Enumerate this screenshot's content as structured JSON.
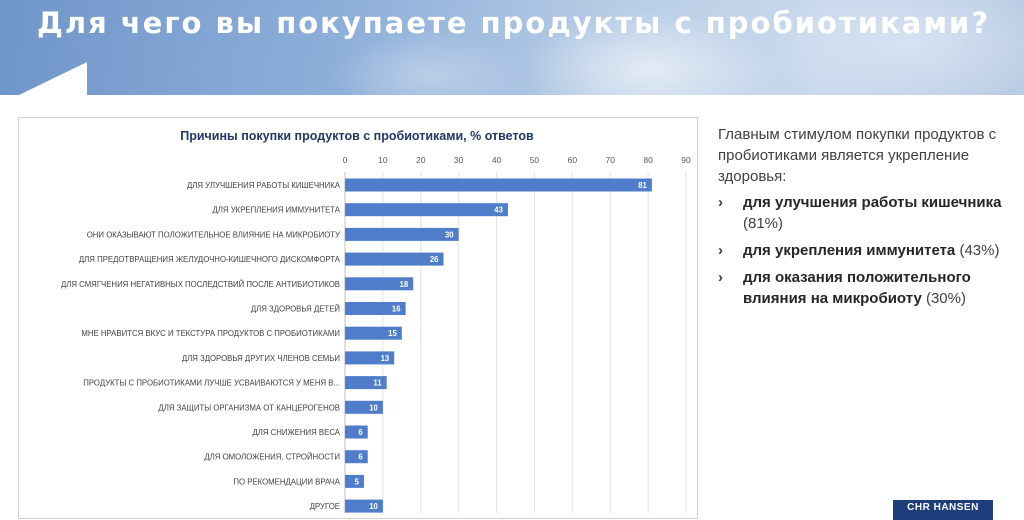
{
  "header": {
    "title": "Для чего вы покупаете продукты с пробиотиками?"
  },
  "side_panel": {
    "intro": "Главным стимулом покупки продуктов с пробиотиками является укрепление здоровья:",
    "bullets": [
      {
        "bold": "для улучшения работы кишечника",
        "rest": "(81%)"
      },
      {
        "bold": "для укрепления иммунитета",
        "rest": "(43%)"
      },
      {
        "bold": "для оказания положительного влияния на микробиоту",
        "rest": "(30%)"
      }
    ]
  },
  "logo": {
    "text": "CHR HANSEN"
  },
  "colors": {
    "bar": "#4f7dc9",
    "banner": "#7d9fd0",
    "title": "#1f3864"
  },
  "chart_data": {
    "type": "bar",
    "orientation": "horizontal",
    "title": "Причины покупки продуктов с пробиотиками, % ответов",
    "xlim": [
      0,
      90
    ],
    "xticks": [
      0,
      10,
      20,
      30,
      40,
      50,
      60,
      70,
      80,
      90
    ],
    "xaxis_position": "top",
    "grid": true,
    "categories": [
      "ДЛЯ УЛУЧШЕНИЯ РАБОТЫ КИШЕЧНИКА",
      "ДЛЯ УКРЕПЛЕНИЯ ИММУНИТЕТА",
      "ОНИ ОКАЗЫВАЮТ ПОЛОЖИТЕЛЬНОЕ ВЛИЯНИЕ НА МИКРОБИОТУ",
      "ДЛЯ ПРЕДОТВРАЩЕНИЯ ЖЕЛУДОЧНО-КИШЕЧНОГО ДИСКОМФОРТА",
      "ДЛЯ СМЯГЧЕНИЯ НЕГАТИВНЫХ ПОСЛЕДСТВИЙ ПОСЛЕ АНТИБИОТИКОВ",
      "ДЛЯ ЗДОРОВЬЯ ДЕТЕЙ",
      "МНЕ НРАВИТСЯ ВКУС И ТЕКСТУРА ПРОДУКТОВ С ПРОБИОТИКАМИ",
      "ДЛЯ ЗДОРОВЬЯ ДРУГИХ ЧЛЕНОВ СЕМЬИ",
      "ПРОДУКТЫ С ПРОБИОТИКАМИ ЛУЧШЕ УСВАИВАЮТСЯ У МЕНЯ В...",
      "ДЛЯ ЗАЩИТЫ ОРГАНИЗМА ОТ КАНЦЕРОГЕНОВ",
      "ДЛЯ СНИЖЕНИЯ ВЕСА",
      "ДЛЯ ОМОЛОЖЕНИЯ, СТРОЙНОСТИ",
      "ПО РЕКОМЕНДАЦИИ ВРАЧА",
      "ДРУГОЕ"
    ],
    "values": [
      81,
      43,
      30,
      26,
      18,
      16,
      15,
      13,
      11,
      10,
      6,
      6,
      5,
      10
    ]
  }
}
